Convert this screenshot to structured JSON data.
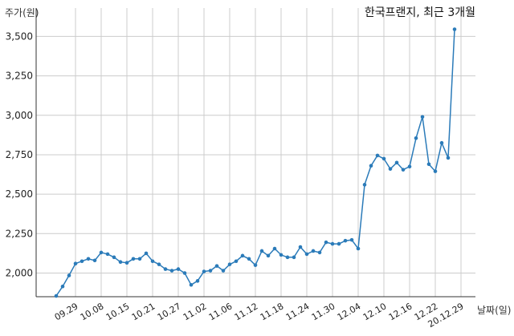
{
  "chart_data": {
    "type": "line",
    "title": "한국프랜지, 최근 3개월",
    "ylabel": "주가(원)",
    "xlabel": "날짜(일)",
    "ylim": [
      1850,
      3680
    ],
    "yticks": [
      2000,
      2250,
      2500,
      2750,
      3000,
      3250,
      3500
    ],
    "ytick_labels": [
      "2,000",
      "2,250",
      "2,500",
      "2,750",
      "3,000",
      "3,250",
      "3,500"
    ],
    "xtick_labels": [
      "09.29",
      "10.08",
      "10.15",
      "10.21",
      "10.27",
      "11.02",
      "11.06",
      "11.12",
      "11.18",
      "11.24",
      "11.30",
      "12.04",
      "12.10",
      "12.16",
      "12.22",
      "20.12.29"
    ],
    "xtick_positions": [
      3,
      7,
      11,
      15,
      19,
      23,
      27,
      31,
      35,
      39,
      43,
      47,
      51,
      55,
      59,
      63
    ],
    "grid": true,
    "line_color": "#2b7bb9",
    "values": [
      1855,
      1915,
      1985,
      2060,
      2075,
      2090,
      2080,
      2130,
      2120,
      2100,
      2070,
      2065,
      2090,
      2090,
      2125,
      2075,
      2055,
      2025,
      2015,
      2025,
      2000,
      1925,
      1950,
      2010,
      2015,
      2045,
      2015,
      2055,
      2075,
      2110,
      2090,
      2050,
      2140,
      2110,
      2155,
      2115,
      2100,
      2100,
      2165,
      2120,
      2140,
      2130,
      2195,
      2185,
      2185,
      2205,
      2210,
      2155,
      2560,
      2680,
      2745,
      2725,
      2660,
      2700,
      2655,
      2675,
      2855,
      2990,
      2690,
      2645,
      2825,
      2730,
      3545
    ]
  }
}
